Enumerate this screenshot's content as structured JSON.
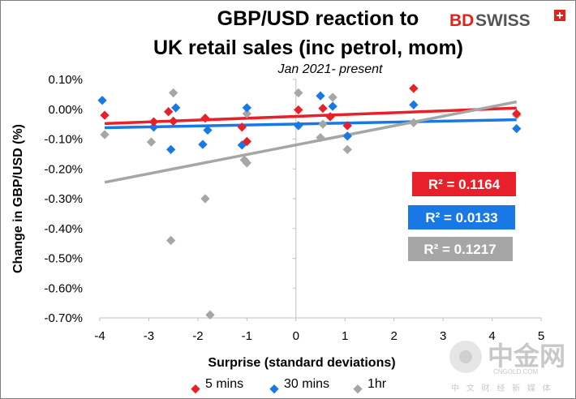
{
  "logo": {
    "brand_left": "BD",
    "brand_right": "SWISS"
  },
  "watermark": {
    "cn_text": "中金网",
    "site": "CNGOLD.COM",
    "sub": "中 文 财 经 新 媒 体"
  },
  "chart_data": {
    "type": "scatter",
    "title_lines": [
      "GBP/USD reaction to",
      "UK retail sales (inc petrol, mom)"
    ],
    "subtitle": "Jan 2021- present",
    "xlabel": "Surprise (standard deviations)",
    "ylabel": "Change in GBP/USD  (%)",
    "xlim": [
      -4,
      5
    ],
    "ylim": [
      -0.007,
      0.001
    ],
    "x_ticks": [
      -4,
      -3,
      -2,
      -1,
      0,
      1,
      2,
      3,
      4,
      5
    ],
    "x_tick_labels": [
      "-4",
      "-3",
      "-2",
      "-1",
      "0",
      "1",
      "2",
      "3",
      "4",
      "5"
    ],
    "y_ticks": [
      0.001,
      0,
      -0.001,
      -0.002,
      -0.003,
      -0.004,
      -0.005,
      -0.006,
      -0.007
    ],
    "y_tick_labels": [
      "0.10%",
      "0.00%",
      "-0.10%",
      "-0.20%",
      "-0.30%",
      "-0.40%",
      "-0.50%",
      "-0.60%",
      "-0.70%"
    ],
    "grid": false,
    "legend_position": "bottom",
    "series": [
      {
        "name": "5 mins",
        "color": "#e8202a",
        "points": [
          [
            -3.9,
            -0.0002
          ],
          [
            -2.9,
            -0.00042
          ],
          [
            -2.6,
            -8e-05
          ],
          [
            -2.5,
            -0.0004
          ],
          [
            -1.85,
            -0.0003
          ],
          [
            -1.1,
            -0.0006
          ],
          [
            -1.0,
            -0.00108
          ],
          [
            0.05,
            -2e-05
          ],
          [
            0.55,
            3e-05
          ],
          [
            0.7,
            -0.00025
          ],
          [
            1.05,
            -0.00055
          ],
          [
            2.4,
            0.0007
          ],
          [
            4.5,
            -0.00015
          ]
        ],
        "trendline": {
          "x": [
            -3.9,
            4.5
          ],
          "y": [
            -0.00048,
            4e-05
          ]
        },
        "r2_label": "R² = 0.1164"
      },
      {
        "name": "30 mins",
        "color": "#1879e6",
        "points": [
          [
            -3.95,
            0.0003
          ],
          [
            -2.9,
            -0.0006
          ],
          [
            -2.55,
            -0.00135
          ],
          [
            -2.45,
            5e-05
          ],
          [
            -1.9,
            -0.00118
          ],
          [
            -1.8,
            -0.0007
          ],
          [
            -1.1,
            -0.0012
          ],
          [
            -1.0,
            5e-05
          ],
          [
            0.05,
            -0.00055
          ],
          [
            0.5,
            0.00045
          ],
          [
            0.75,
            0.0001
          ],
          [
            1.05,
            -0.0009
          ],
          [
            2.4,
            0.00015
          ],
          [
            4.5,
            -0.00065
          ]
        ],
        "trendline": {
          "x": [
            -3.9,
            4.5
          ],
          "y": [
            -0.00062,
            -0.00035
          ]
        },
        "r2_label": "R² = 0.0133"
      },
      {
        "name": "1hr",
        "color": "#a6a6a6",
        "points": [
          [
            -3.9,
            -0.00085
          ],
          [
            -2.95,
            -0.0011
          ],
          [
            -2.5,
            0.00055
          ],
          [
            -2.55,
            -0.0044
          ],
          [
            -1.85,
            -0.003
          ],
          [
            -1.75,
            -0.0069
          ],
          [
            -1.05,
            -0.0017
          ],
          [
            -1.0,
            -0.0018
          ],
          [
            -1.0,
            -0.00015
          ],
          [
            0.05,
            0.00055
          ],
          [
            0.5,
            -0.00095
          ],
          [
            0.55,
            -0.0005
          ],
          [
            0.75,
            0.0004
          ],
          [
            1.05,
            -0.00135
          ],
          [
            2.4,
            -0.00045
          ],
          [
            4.5,
            -0.0002
          ]
        ],
        "trendline": {
          "x": [
            -3.9,
            4.5
          ],
          "y": [
            -0.00245,
            0.00025
          ]
        },
        "r2_label": "R² = 0.1217"
      }
    ]
  }
}
